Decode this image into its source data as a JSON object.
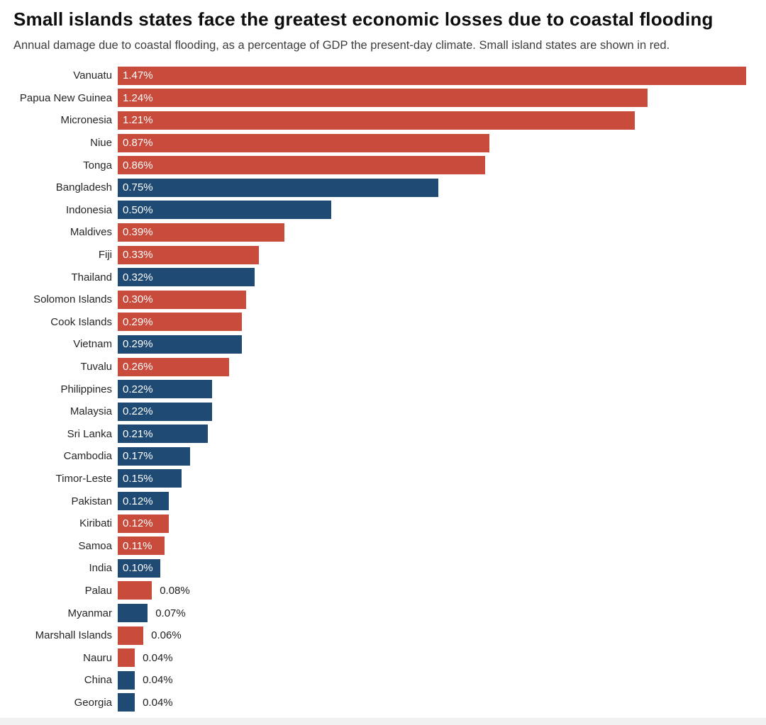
{
  "header": {
    "title": "Small islands states face the greatest economic losses due to coastal flooding",
    "subtitle": "Annual damage due to coastal flooding, as a percentage of GDP the present-day climate. Small island states are shown in red."
  },
  "colors": {
    "small_island_bar": "#c84b3c",
    "other_country_bar": "#1f4a73",
    "title_text": "#0e0e0e",
    "subtitle_text": "#3d3d3d",
    "category_label_text": "#262626",
    "inside_value_text": "#ffffff",
    "outside_value_text": "#1d1d1d",
    "background": "#ffffff",
    "footer_strip": "#f0f0f0"
  },
  "chart_data": {
    "type": "bar",
    "orientation": "horizontal",
    "title": "Small islands states face the greatest economic losses due to coastal flooding",
    "subtitle": "Annual damage due to coastal flooding, as a percentage of GDP the present-day climate. Small island states are shown in red.",
    "xlabel": "",
    "ylabel": "",
    "xlim": [
      0,
      1.5
    ],
    "grid": false,
    "legend": "none (color-coded: red = small island state, blue = other country)",
    "value_unit": "% of GDP",
    "bars": [
      {
        "category": "Vanuatu",
        "value": 1.47,
        "label": "1.47%",
        "group": "small_island",
        "label_inside": true
      },
      {
        "category": "Papua New Guinea",
        "value": 1.24,
        "label": "1.24%",
        "group": "small_island",
        "label_inside": true
      },
      {
        "category": "Micronesia",
        "value": 1.21,
        "label": "1.21%",
        "group": "small_island",
        "label_inside": true
      },
      {
        "category": "Niue",
        "value": 0.87,
        "label": "0.87%",
        "group": "small_island",
        "label_inside": true
      },
      {
        "category": "Tonga",
        "value": 0.86,
        "label": "0.86%",
        "group": "small_island",
        "label_inside": true
      },
      {
        "category": "Bangladesh",
        "value": 0.75,
        "label": "0.75%",
        "group": "other",
        "label_inside": true
      },
      {
        "category": "Indonesia",
        "value": 0.5,
        "label": "0.50%",
        "group": "other",
        "label_inside": true
      },
      {
        "category": "Maldives",
        "value": 0.39,
        "label": "0.39%",
        "group": "small_island",
        "label_inside": true
      },
      {
        "category": "Fiji",
        "value": 0.33,
        "label": "0.33%",
        "group": "small_island",
        "label_inside": true
      },
      {
        "category": "Thailand",
        "value": 0.32,
        "label": "0.32%",
        "group": "other",
        "label_inside": true
      },
      {
        "category": "Solomon Islands",
        "value": 0.3,
        "label": "0.30%",
        "group": "small_island",
        "label_inside": true
      },
      {
        "category": "Cook Islands",
        "value": 0.29,
        "label": "0.29%",
        "group": "small_island",
        "label_inside": true
      },
      {
        "category": "Vietnam",
        "value": 0.29,
        "label": "0.29%",
        "group": "other",
        "label_inside": true
      },
      {
        "category": "Tuvalu",
        "value": 0.26,
        "label": "0.26%",
        "group": "small_island",
        "label_inside": true
      },
      {
        "category": "Philippines",
        "value": 0.22,
        "label": "0.22%",
        "group": "other",
        "label_inside": true
      },
      {
        "category": "Malaysia",
        "value": 0.22,
        "label": "0.22%",
        "group": "other",
        "label_inside": true
      },
      {
        "category": "Sri Lanka",
        "value": 0.21,
        "label": "0.21%",
        "group": "other",
        "label_inside": true
      },
      {
        "category": "Cambodia",
        "value": 0.17,
        "label": "0.17%",
        "group": "other",
        "label_inside": true
      },
      {
        "category": "Timor-Leste",
        "value": 0.15,
        "label": "0.15%",
        "group": "other",
        "label_inside": true
      },
      {
        "category": "Pakistan",
        "value": 0.12,
        "label": "0.12%",
        "group": "other",
        "label_inside": true
      },
      {
        "category": "Kiribati",
        "value": 0.12,
        "label": "0.12%",
        "group": "small_island",
        "label_inside": true
      },
      {
        "category": "Samoa",
        "value": 0.11,
        "label": "0.11%",
        "group": "small_island",
        "label_inside": true
      },
      {
        "category": "India",
        "value": 0.1,
        "label": "0.10%",
        "group": "other",
        "label_inside": true
      },
      {
        "category": "Palau",
        "value": 0.08,
        "label": "0.08%",
        "group": "small_island",
        "label_inside": false
      },
      {
        "category": "Myanmar",
        "value": 0.07,
        "label": "0.07%",
        "group": "other",
        "label_inside": false
      },
      {
        "category": "Marshall Islands",
        "value": 0.06,
        "label": "0.06%",
        "group": "small_island",
        "label_inside": false
      },
      {
        "category": "Nauru",
        "value": 0.04,
        "label": "0.04%",
        "group": "small_island",
        "label_inside": false
      },
      {
        "category": "China",
        "value": 0.04,
        "label": "0.04%",
        "group": "other",
        "label_inside": false
      },
      {
        "category": "Georgia",
        "value": 0.04,
        "label": "0.04%",
        "group": "other",
        "label_inside": false
      }
    ]
  }
}
